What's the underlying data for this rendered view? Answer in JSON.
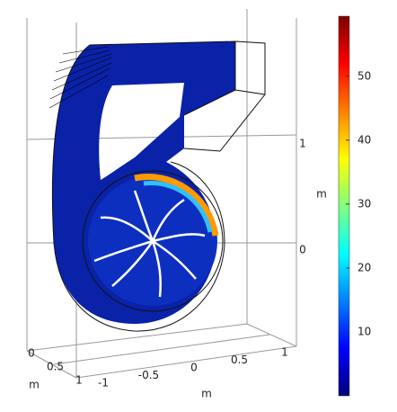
{
  "chart_data": {
    "type": "surface3d",
    "xlabel": "m",
    "ylabel": "m",
    "zlabel": "m",
    "xticks": [
      -1,
      -0.5,
      0,
      0.5,
      1
    ],
    "yticks": [
      0,
      0.5,
      1
    ],
    "zticks": [
      0,
      1
    ],
    "colorbar": {
      "lim": [
        0,
        59.4
      ],
      "ticks": [
        10,
        20,
        30,
        40,
        50
      ],
      "colors": [
        "#00007f",
        "#0000ff",
        "#0080ff",
        "#00ffff",
        "#80ff80",
        "#ffff00",
        "#ff8000",
        "#ff0000",
        "#7f0000"
      ]
    }
  }
}
